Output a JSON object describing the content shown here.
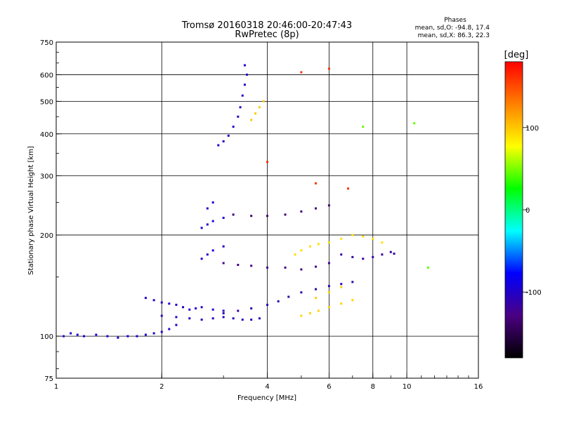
{
  "chart_data": {
    "type": "scatter",
    "title": "Tromsø 20160318 20:46:00-20:47:43",
    "subtitle": "RwPretec (8p)",
    "xlabel": "Frequency [MHz]",
    "ylabel": "Stationary phase Virtual Height [km]",
    "x_scale": "log",
    "y_scale": "log",
    "xlim": [
      1,
      16
    ],
    "ylim": [
      75,
      750
    ],
    "x_ticks": [
      "1",
      "2",
      "4",
      "6",
      "8",
      "10",
      "16"
    ],
    "y_ticks": [
      "75",
      "100",
      "200",
      "300",
      "400",
      "500",
      "600",
      "750"
    ],
    "x_grid": [
      2,
      4,
      6,
      8,
      10
    ],
    "y_grid": [
      100,
      200,
      300,
      400,
      500,
      600
    ],
    "grid": true,
    "stats": {
      "heading": "Phases",
      "o_line": "mean, sd,O: -94.8, 17.4",
      "x_line": "mean, sd,X:  86.3, 22.3"
    },
    "colorbar": {
      "label": "[deg]",
      "min": -180,
      "max": 180,
      "ticks": [
        "100",
        "0",
        "-100"
      ],
      "tick_values": [
        100,
        0,
        -100
      ],
      "colors": [
        "#ff0000",
        "#ff8000",
        "#ffff00",
        "#00ff00",
        "#00ffff",
        "#0000ff",
        "#4b0082",
        "#000000"
      ]
    },
    "series": [
      {
        "phase": -95,
        "points": [
          [
            1.05,
            100
          ],
          [
            1.1,
            102
          ],
          [
            1.15,
            101
          ],
          [
            1.2,
            100
          ],
          [
            1.3,
            101
          ],
          [
            1.4,
            100
          ],
          [
            1.5,
            99
          ],
          [
            1.6,
            100
          ],
          [
            1.7,
            100
          ],
          [
            1.8,
            101
          ],
          [
            1.9,
            102
          ],
          [
            2.0,
            103
          ],
          [
            2.1,
            105
          ],
          [
            2.2,
            108
          ]
        ]
      },
      {
        "phase": -100,
        "points": [
          [
            1.8,
            130
          ],
          [
            1.9,
            128
          ],
          [
            2.0,
            126
          ],
          [
            2.1,
            125
          ],
          [
            2.2,
            124
          ],
          [
            2.3,
            122
          ],
          [
            2.4,
            120
          ],
          [
            2.5,
            121
          ],
          [
            2.6,
            122
          ],
          [
            2.8,
            120
          ],
          [
            3.0,
            119
          ]
        ]
      },
      {
        "phase": -105,
        "points": [
          [
            2.0,
            115
          ],
          [
            2.2,
            114
          ],
          [
            2.4,
            113
          ],
          [
            2.6,
            112
          ],
          [
            2.8,
            113
          ],
          [
            3.0,
            114
          ],
          [
            3.2,
            113
          ],
          [
            3.4,
            112
          ],
          [
            3.6,
            112
          ],
          [
            3.8,
            113
          ]
        ]
      },
      {
        "phase": -110,
        "points": [
          [
            3.0,
            117
          ],
          [
            3.3,
            119
          ],
          [
            3.6,
            121
          ],
          [
            4.0,
            124
          ],
          [
            4.3,
            127
          ],
          [
            4.6,
            131
          ],
          [
            5.0,
            135
          ],
          [
            5.5,
            138
          ],
          [
            6.0,
            141
          ],
          [
            6.5,
            143
          ],
          [
            7.0,
            145
          ]
        ]
      },
      {
        "phase": -100,
        "points": [
          [
            2.9,
            370
          ],
          [
            3.0,
            380
          ],
          [
            3.1,
            395
          ],
          [
            3.2,
            420
          ],
          [
            3.3,
            450
          ],
          [
            3.35,
            480
          ],
          [
            3.4,
            520
          ],
          [
            3.45,
            560
          ],
          [
            3.5,
            600
          ],
          [
            3.45,
            640
          ]
        ]
      },
      {
        "phase": -95,
        "points": [
          [
            2.6,
            170
          ],
          [
            2.7,
            175
          ],
          [
            2.8,
            180
          ],
          [
            3.0,
            185
          ],
          [
            2.6,
            210
          ],
          [
            2.7,
            215
          ],
          [
            2.8,
            220
          ],
          [
            3.0,
            225
          ],
          [
            2.7,
            240
          ],
          [
            2.8,
            250
          ]
        ]
      },
      {
        "phase": -125,
        "points": [
          [
            3.0,
            165
          ],
          [
            3.3,
            163
          ],
          [
            3.6,
            162
          ],
          [
            4.0,
            160
          ],
          [
            4.5,
            160
          ],
          [
            5.0,
            158
          ],
          [
            5.5,
            161
          ],
          [
            6.0,
            165
          ]
        ]
      },
      {
        "phase": -135,
        "points": [
          [
            3.2,
            230
          ],
          [
            3.6,
            228
          ],
          [
            4.0,
            228
          ],
          [
            4.5,
            230
          ],
          [
            5.0,
            235
          ],
          [
            5.5,
            240
          ],
          [
            6.0,
            245
          ]
        ]
      },
      {
        "phase": 90,
        "points": [
          [
            4.8,
            175
          ],
          [
            5.0,
            180
          ],
          [
            5.3,
            185
          ],
          [
            5.6,
            188
          ],
          [
            6.0,
            190
          ],
          [
            6.5,
            195
          ],
          [
            7.0,
            200
          ],
          [
            7.5,
            198
          ],
          [
            8.0,
            195
          ],
          [
            8.5,
            190
          ]
        ]
      },
      {
        "phase": 95,
        "points": [
          [
            5.0,
            115
          ],
          [
            5.3,
            117
          ],
          [
            5.6,
            119
          ],
          [
            6.0,
            122
          ],
          [
            6.5,
            125
          ],
          [
            7.0,
            128
          ],
          [
            5.5,
            130
          ],
          [
            6.0,
            135
          ],
          [
            6.5,
            140
          ]
        ]
      },
      {
        "phase": 100,
        "points": [
          [
            3.6,
            440
          ],
          [
            3.7,
            460
          ],
          [
            3.8,
            480
          ],
          [
            3.9,
            500
          ]
        ]
      },
      {
        "phase": -115,
        "points": [
          [
            6.5,
            175
          ],
          [
            7.0,
            172
          ],
          [
            7.5,
            170
          ],
          [
            8.0,
            172
          ],
          [
            8.5,
            175
          ],
          [
            9.0,
            178
          ],
          [
            9.2,
            176
          ]
        ]
      },
      {
        "phase": 45,
        "points": [
          [
            11.5,
            160
          ],
          [
            10.5,
            430
          ],
          [
            7.5,
            420
          ]
        ]
      },
      {
        "phase": 160,
        "points": [
          [
            6.0,
            625
          ],
          [
            5.0,
            610
          ],
          [
            4.0,
            330
          ],
          [
            5.5,
            285
          ],
          [
            6.8,
            275
          ]
        ]
      }
    ]
  }
}
